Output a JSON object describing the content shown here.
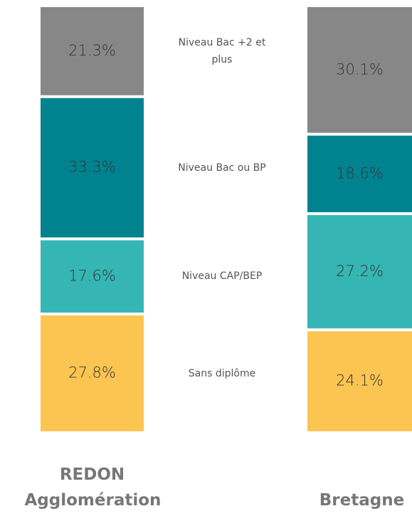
{
  "chart_data": {
    "type": "stacked_bar",
    "categories": [
      "REDON Agglomération",
      "Bretagne"
    ],
    "ylim": [
      0,
      100
    ],
    "series": [
      {
        "name": "Sans diplôme",
        "color": "#fcc552",
        "values": [
          27.8,
          24.1
        ],
        "value_labels": [
          "27.8%",
          "24.1%"
        ]
      },
      {
        "name": "Niveau CAP/BEP",
        "color": "#35b6b4",
        "values": [
          17.6,
          27.2
        ],
        "value_labels": [
          "17.6%",
          "27.2%"
        ]
      },
      {
        "name": "Niveau Bac ou BP",
        "color": "#00838f",
        "values": [
          33.3,
          18.6
        ],
        "value_labels": [
          "33.3%",
          "18.6%"
        ]
      },
      {
        "name": "Niveau Bac +2 et plus",
        "color": "#878787",
        "values": [
          21.3,
          30.1
        ],
        "value_labels": [
          "21.3%",
          "30.1%"
        ]
      }
    ]
  }
}
